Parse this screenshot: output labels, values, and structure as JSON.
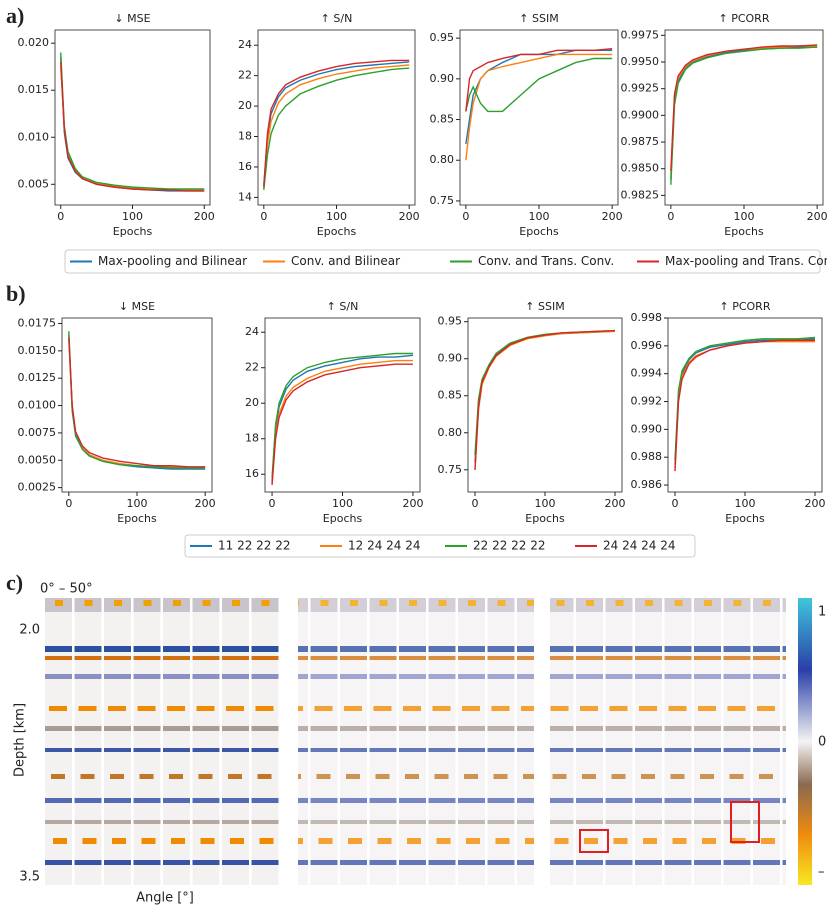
{
  "panel_labels": [
    "a)",
    "b)",
    "c)"
  ],
  "chart_data": [
    {
      "type": "line",
      "title": "↓ MSE",
      "xlabel": "Epochs",
      "x": [
        0,
        5,
        10,
        20,
        30,
        50,
        75,
        100,
        125,
        150,
        175,
        200
      ],
      "xlim": [
        -8,
        208
      ],
      "xticks": [
        0,
        100,
        200
      ],
      "ylim": [
        0.0028,
        0.0214
      ],
      "yticks": [
        0.005,
        {
          "value": 0.01,
          "label": "0.010"
        },
        0.015,
        {
          "value": 0.02,
          "label": "0.020"
        }
      ],
      "series": [
        {
          "name": "Max-pooling and Bilinear",
          "color": "#1f77b4",
          "values": [
            0.0185,
            0.0105,
            0.0078,
            0.0063,
            0.0056,
            0.005,
            0.0047,
            0.0045,
            0.0044,
            0.0043,
            0.0043,
            0.0043
          ]
        },
        {
          "name": "Conv. and Bilinear",
          "color": "#ff7f0e",
          "values": [
            0.0175,
            0.011,
            0.0082,
            0.0065,
            0.0057,
            0.0051,
            0.0048,
            0.0046,
            0.0045,
            0.0044,
            0.0044,
            0.0044
          ]
        },
        {
          "name": "Conv. and Trans. Conv.",
          "color": "#2ca02c",
          "values": [
            0.019,
            0.0112,
            0.0085,
            0.0067,
            0.0058,
            0.0052,
            0.0049,
            0.0047,
            0.0046,
            0.0045,
            0.0045,
            0.0045
          ]
        },
        {
          "name": "Max-pooling and Trans. Conv.",
          "color": "#d62728",
          "values": [
            0.018,
            0.0108,
            0.008,
            0.0064,
            0.0056,
            0.005,
            0.0047,
            0.0045,
            0.0044,
            0.0044,
            0.0043,
            0.0043
          ]
        }
      ]
    },
    {
      "type": "line",
      "title": "↑ S/N",
      "xlabel": "Epochs",
      "x": [
        0,
        5,
        10,
        20,
        30,
        50,
        75,
        100,
        125,
        150,
        175,
        200
      ],
      "xlim": [
        -8,
        208
      ],
      "xticks": [
        0,
        100,
        200
      ],
      "ylim": [
        13.5,
        25
      ],
      "yticks": [
        14,
        16,
        18,
        20,
        22,
        24
      ],
      "series": [
        {
          "color": "#1f77b4",
          "values": [
            14.8,
            18.0,
            19.5,
            20.6,
            21.2,
            21.7,
            22.1,
            22.4,
            22.6,
            22.7,
            22.8,
            22.9
          ]
        },
        {
          "color": "#ff7f0e",
          "values": [
            14.6,
            17.5,
            19.0,
            20.2,
            20.8,
            21.4,
            21.8,
            22.1,
            22.3,
            22.5,
            22.6,
            22.7
          ]
        },
        {
          "color": "#2ca02c",
          "values": [
            14.5,
            16.8,
            18.2,
            19.4,
            20.0,
            20.8,
            21.3,
            21.7,
            22.0,
            22.2,
            22.4,
            22.5
          ]
        },
        {
          "color": "#d62728",
          "values": [
            14.7,
            18.2,
            19.8,
            20.8,
            21.4,
            21.9,
            22.3,
            22.6,
            22.8,
            22.9,
            23.0,
            23.0
          ]
        }
      ]
    },
    {
      "type": "line",
      "title": "↑ SSIM",
      "xlabel": "Epochs",
      "x": [
        0,
        5,
        10,
        20,
        30,
        50,
        75,
        100,
        125,
        150,
        175,
        200
      ],
      "xlim": [
        -8,
        208
      ],
      "xticks": [
        0,
        100,
        200
      ],
      "ylim": [
        0.745,
        0.96
      ],
      "yticks": [
        0.75,
        {
          "value": 0.8,
          "label": "0.80"
        },
        0.85,
        {
          "value": 0.9,
          "label": "0.90"
        },
        0.95
      ],
      "series": [
        {
          "color": "#1f77b4",
          "values": [
            0.82,
            0.85,
            0.88,
            0.9,
            0.91,
            0.92,
            0.93,
            0.93,
            0.93,
            0.935,
            0.935,
            0.935
          ]
        },
        {
          "color": "#ff7f0e",
          "values": [
            0.8,
            0.84,
            0.87,
            0.9,
            0.91,
            0.915,
            0.92,
            0.925,
            0.93,
            0.93,
            0.93,
            0.93
          ]
        },
        {
          "color": "#2ca02c",
          "values": [
            0.86,
            0.88,
            0.89,
            0.87,
            0.86,
            0.86,
            0.88,
            0.9,
            0.91,
            0.92,
            0.925,
            0.925
          ]
        },
        {
          "color": "#d62728",
          "values": [
            0.86,
            0.9,
            0.91,
            0.915,
            0.92,
            0.925,
            0.93,
            0.93,
            0.935,
            0.935,
            0.935,
            0.937
          ]
        }
      ]
    },
    {
      "type": "line",
      "title": "↑ PCORR",
      "xlabel": "Epochs",
      "x": [
        0,
        5,
        10,
        20,
        30,
        50,
        75,
        100,
        125,
        150,
        175,
        200
      ],
      "xlim": [
        -8,
        208
      ],
      "xticks": [
        0,
        100,
        200
      ],
      "ylim": [
        0.9816,
        0.998
      ],
      "yticks": [
        0.9825,
        {
          "value": 0.985,
          "label": "0.9850"
        },
        0.9875,
        {
          "value": 0.99,
          "label": "0.9900"
        },
        0.9925,
        {
          "value": 0.995,
          "label": "0.9950"
        },
        0.9975
      ],
      "series": [
        {
          "color": "#1f77b4",
          "values": [
            0.984,
            0.9915,
            0.9932,
            0.9945,
            0.995,
            0.9955,
            0.9959,
            0.9961,
            0.9962,
            0.9963,
            0.9964,
            0.9964
          ]
        },
        {
          "color": "#ff7f0e",
          "values": [
            0.9845,
            0.9918,
            0.9935,
            0.9946,
            0.9951,
            0.9956,
            0.996,
            0.9962,
            0.9963,
            0.9964,
            0.9965,
            0.9965
          ]
        },
        {
          "color": "#2ca02c",
          "values": [
            0.9835,
            0.991,
            0.993,
            0.9943,
            0.9949,
            0.9954,
            0.9958,
            0.996,
            0.9962,
            0.9963,
            0.9963,
            0.9964
          ]
        },
        {
          "color": "#d62728",
          "values": [
            0.9848,
            0.992,
            0.9937,
            0.9947,
            0.9952,
            0.9957,
            0.996,
            0.9962,
            0.9964,
            0.9965,
            0.9965,
            0.9966
          ]
        }
      ]
    },
    {
      "type": "line",
      "title": "↓ MSE",
      "xlabel": "Epochs",
      "x": [
        0,
        5,
        10,
        20,
        30,
        50,
        75,
        100,
        125,
        150,
        175,
        200
      ],
      "xlim": [
        -10,
        210
      ],
      "xticks": [
        0,
        100,
        200
      ],
      "ylim": [
        0.0021,
        0.018
      ],
      "yticks": [
        0.0025,
        {
          "value": 0.005,
          "label": "0.0050"
        },
        0.0075,
        {
          "value": 0.01,
          "label": "0.0100"
        },
        0.0125,
        {
          "value": 0.015,
          "label": "0.0150"
        },
        0.0175
      ],
      "series": [
        {
          "name": "11 22 22 22",
          "color": "#1f77b4",
          "values": [
            0.0165,
            0.0095,
            0.0072,
            0.006,
            0.0054,
            0.0049,
            0.0046,
            0.0044,
            0.0043,
            0.0042,
            0.0042,
            0.0042
          ]
        },
        {
          "name": "12 24 24 24",
          "color": "#ff7f0e",
          "values": [
            0.016,
            0.0098,
            0.0074,
            0.0061,
            0.0055,
            0.005,
            0.0047,
            0.0045,
            0.0044,
            0.0044,
            0.0043,
            0.0043
          ]
        },
        {
          "name": "22 22 22 22",
          "color": "#2ca02c",
          "values": [
            0.0168,
            0.0096,
            0.0073,
            0.006,
            0.0054,
            0.0049,
            0.0046,
            0.0045,
            0.0044,
            0.0043,
            0.0043,
            0.0043
          ]
        },
        {
          "name": "24 24 24 24",
          "color": "#d62728",
          "values": [
            0.0162,
            0.01,
            0.0076,
            0.0063,
            0.0057,
            0.0052,
            0.0049,
            0.0047,
            0.0045,
            0.0045,
            0.0044,
            0.0044
          ]
        }
      ]
    },
    {
      "type": "line",
      "title": "↑ S/N",
      "xlabel": "Epochs",
      "x": [
        0,
        5,
        10,
        20,
        30,
        50,
        75,
        100,
        125,
        150,
        175,
        200
      ],
      "xlim": [
        -10,
        210
      ],
      "xticks": [
        0,
        100,
        200
      ],
      "ylim": [
        15,
        24.8
      ],
      "yticks": [
        16,
        18,
        20,
        22,
        24
      ],
      "series": [
        {
          "color": "#1f77b4",
          "values": [
            15.6,
            18.6,
            19.8,
            20.8,
            21.3,
            21.8,
            22.1,
            22.3,
            22.5,
            22.6,
            22.6,
            22.7
          ]
        },
        {
          "color": "#ff7f0e",
          "values": [
            15.5,
            18.2,
            19.4,
            20.4,
            20.9,
            21.4,
            21.8,
            22.0,
            22.2,
            22.3,
            22.4,
            22.4
          ]
        },
        {
          "color": "#2ca02c",
          "values": [
            15.8,
            18.8,
            20.0,
            21.0,
            21.5,
            22.0,
            22.3,
            22.5,
            22.6,
            22.7,
            22.8,
            22.8
          ]
        },
        {
          "color": "#d62728",
          "values": [
            15.4,
            18.0,
            19.2,
            20.2,
            20.7,
            21.2,
            21.6,
            21.8,
            22.0,
            22.1,
            22.2,
            22.2
          ]
        }
      ]
    },
    {
      "type": "line",
      "title": "↑ SSIM",
      "xlabel": "Epochs",
      "x": [
        0,
        5,
        10,
        20,
        30,
        50,
        75,
        100,
        125,
        150,
        175,
        200
      ],
      "xlim": [
        -10,
        210
      ],
      "xticks": [
        0,
        100,
        200
      ],
      "ylim": [
        0.72,
        0.955
      ],
      "yticks": [
        0.75,
        {
          "value": 0.8,
          "label": "0.80"
        },
        0.85,
        {
          "value": 0.9,
          "label": "0.90"
        },
        0.95
      ],
      "series": [
        {
          "color": "#1f77b4",
          "values": [
            0.76,
            0.84,
            0.87,
            0.89,
            0.905,
            0.92,
            0.928,
            0.932,
            0.934,
            0.935,
            0.936,
            0.937
          ]
        },
        {
          "color": "#ff7f0e",
          "values": [
            0.75,
            0.83,
            0.865,
            0.888,
            0.903,
            0.918,
            0.927,
            0.931,
            0.934,
            0.935,
            0.936,
            0.937
          ]
        },
        {
          "color": "#2ca02c",
          "values": [
            0.77,
            0.845,
            0.872,
            0.892,
            0.907,
            0.921,
            0.929,
            0.933,
            0.935,
            0.936,
            0.937,
            0.938
          ]
        },
        {
          "color": "#d62728",
          "values": [
            0.75,
            0.835,
            0.868,
            0.889,
            0.904,
            0.919,
            0.928,
            0.932,
            0.935,
            0.936,
            0.937,
            0.938
          ]
        }
      ]
    },
    {
      "type": "line",
      "title": "↑ PCORR",
      "xlabel": "Epochs",
      "x": [
        0,
        5,
        10,
        20,
        30,
        50,
        75,
        100,
        125,
        150,
        175,
        200
      ],
      "xlim": [
        -10,
        210
      ],
      "xticks": [
        0,
        100,
        200
      ],
      "ylim": [
        0.9855,
        0.998
      ],
      "yticks": [
        0.986,
        0.988,
        {
          "value": 0.99,
          "label": "0.990"
        },
        0.992,
        0.994,
        0.996,
        0.998
      ],
      "series": [
        {
          "color": "#1f77b4",
          "values": [
            0.9875,
            0.9925,
            0.994,
            0.995,
            0.9955,
            0.9959,
            0.9961,
            0.9963,
            0.9964,
            0.9964,
            0.9964,
            0.9965
          ]
        },
        {
          "color": "#ff7f0e",
          "values": [
            0.9872,
            0.9922,
            0.9938,
            0.9948,
            0.9953,
            0.9957,
            0.996,
            0.9962,
            0.9963,
            0.9963,
            0.9963,
            0.9963
          ]
        },
        {
          "color": "#2ca02c",
          "values": [
            0.9878,
            0.9928,
            0.9942,
            0.9951,
            0.9956,
            0.996,
            0.9962,
            0.9964,
            0.9965,
            0.9965,
            0.9965,
            0.9966
          ]
        },
        {
          "color": "#d62728",
          "values": [
            0.987,
            0.992,
            0.9936,
            0.9947,
            0.9952,
            0.9957,
            0.996,
            0.9962,
            0.9963,
            0.9964,
            0.9964,
            0.9964
          ]
        }
      ]
    }
  ],
  "panel_c": {
    "angle_range": "0° – 50°",
    "ylabel": "Depth [km]",
    "xlabel": "Angle [°]",
    "depth_top": "2.0",
    "depth_bottom": "3.5",
    "colorbar_labels": [
      "1",
      "0",
      "–"
    ]
  }
}
